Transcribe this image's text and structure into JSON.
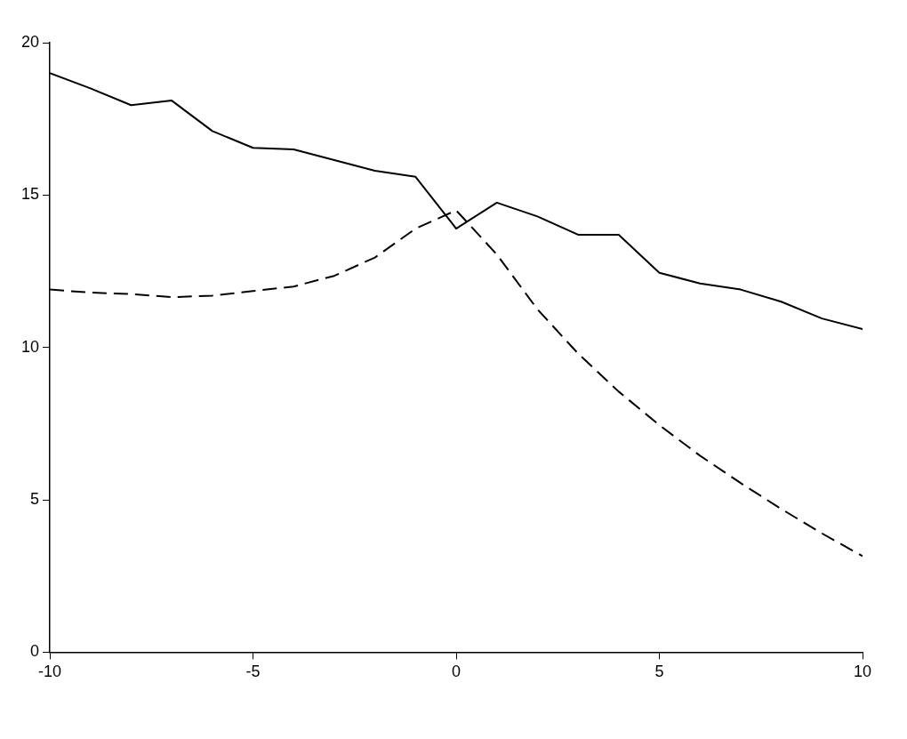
{
  "chart_data": {
    "type": "line",
    "x": [
      -10,
      -9,
      -8,
      -7,
      -6,
      -5,
      -4,
      -3,
      -2,
      -1,
      0,
      1,
      2,
      3,
      4,
      5,
      6,
      7,
      8,
      9,
      10
    ],
    "series": [
      {
        "color": "#000000",
        "line_style": "solid",
        "values": [
          19.0,
          18.5,
          17.95,
          18.1,
          17.1,
          16.55,
          16.5,
          16.15,
          15.8,
          15.6,
          13.9,
          14.75,
          14.3,
          13.7,
          13.7,
          12.45,
          12.1,
          11.9,
          11.5,
          10.95,
          10.6
        ]
      },
      {
        "color": "#000000",
        "line_style": "dashed",
        "values": [
          11.9,
          11.8,
          11.75,
          11.65,
          11.7,
          11.85,
          12.0,
          12.35,
          12.95,
          13.9,
          14.5,
          13.05,
          11.25,
          9.8,
          8.55,
          7.45,
          6.45,
          5.55,
          4.7,
          3.9,
          3.15
        ]
      }
    ],
    "xlim": [
      -10,
      10
    ],
    "xticks": [
      -10,
      -5,
      0,
      5,
      10
    ],
    "ylim": [
      0,
      20
    ],
    "yticks": [
      0,
      5,
      10,
      15,
      20
    ],
    "grid": false,
    "legend": false,
    "marker": "none"
  }
}
